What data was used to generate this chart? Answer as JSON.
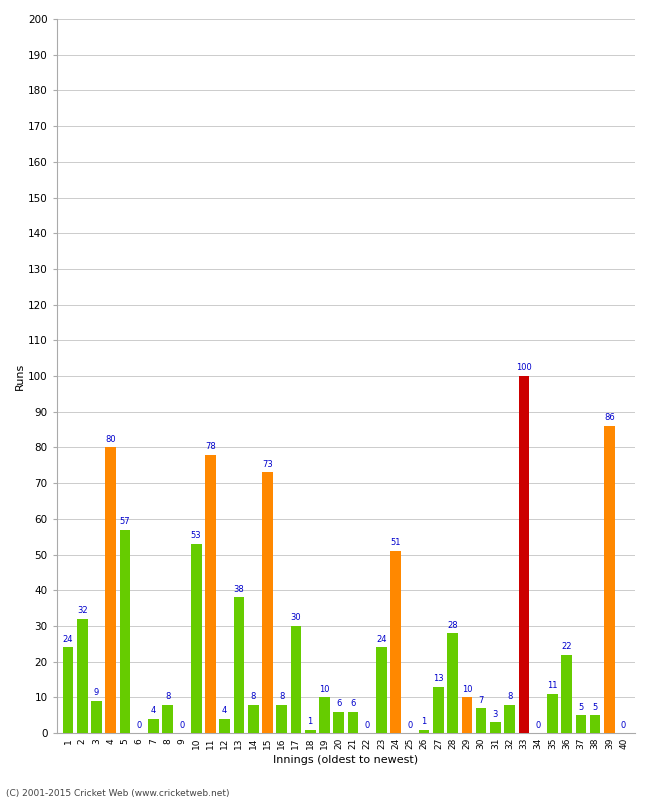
{
  "xlabel": "Innings (oldest to newest)",
  "ylabel": "Runs",
  "ylim": [
    0,
    200
  ],
  "yticks": [
    0,
    10,
    20,
    30,
    40,
    50,
    60,
    70,
    80,
    90,
    100,
    110,
    120,
    130,
    140,
    150,
    160,
    170,
    180,
    190,
    200
  ],
  "green_color": "#66cc00",
  "orange_color": "#ff8800",
  "red_color": "#cc0000",
  "label_color": "#0000cc",
  "bg_color": "#ffffff",
  "grid_color": "#cccccc",
  "footer": "(C) 2001-2015 Cricket Web (www.cricketweb.net)",
  "innings_data": [
    {
      "inn": 1,
      "val": 24,
      "color": "green"
    },
    {
      "inn": 2,
      "val": 32,
      "color": "green"
    },
    {
      "inn": 3,
      "val": 9,
      "color": "green"
    },
    {
      "inn": 4,
      "val": 80,
      "color": "orange"
    },
    {
      "inn": 5,
      "val": 57,
      "color": "green"
    },
    {
      "inn": 6,
      "val": 0,
      "color": "orange"
    },
    {
      "inn": 7,
      "val": 4,
      "color": "green"
    },
    {
      "inn": 8,
      "val": 8,
      "color": "green"
    },
    {
      "inn": 9,
      "val": 0,
      "color": "orange"
    },
    {
      "inn": 10,
      "val": 53,
      "color": "green"
    },
    {
      "inn": 11,
      "val": 78,
      "color": "orange"
    },
    {
      "inn": 12,
      "val": 4,
      "color": "green"
    },
    {
      "inn": 13,
      "val": 38,
      "color": "green"
    },
    {
      "inn": 14,
      "val": 8,
      "color": "green"
    },
    {
      "inn": 15,
      "val": 73,
      "color": "orange"
    },
    {
      "inn": 16,
      "val": 8,
      "color": "green"
    },
    {
      "inn": 17,
      "val": 30,
      "color": "green"
    },
    {
      "inn": 18,
      "val": 1,
      "color": "green"
    },
    {
      "inn": 19,
      "val": 10,
      "color": "green"
    },
    {
      "inn": 20,
      "val": 6,
      "color": "green"
    },
    {
      "inn": 21,
      "val": 6,
      "color": "green"
    },
    {
      "inn": 22,
      "val": 0,
      "color": "orange"
    },
    {
      "inn": 23,
      "val": 24,
      "color": "green"
    },
    {
      "inn": 24,
      "val": 51,
      "color": "orange"
    },
    {
      "inn": 25,
      "val": 0,
      "color": "green"
    },
    {
      "inn": 26,
      "val": 1,
      "color": "green"
    },
    {
      "inn": 27,
      "val": 13,
      "color": "green"
    },
    {
      "inn": 28,
      "val": 28,
      "color": "green"
    },
    {
      "inn": 29,
      "val": 10,
      "color": "orange"
    },
    {
      "inn": 30,
      "val": 7,
      "color": "green"
    },
    {
      "inn": 31,
      "val": 3,
      "color": "green"
    },
    {
      "inn": 32,
      "val": 8,
      "color": "green"
    },
    {
      "inn": 33,
      "val": 100,
      "color": "red"
    },
    {
      "inn": 34,
      "val": 0,
      "color": "orange"
    },
    {
      "inn": 35,
      "val": 11,
      "color": "green"
    },
    {
      "inn": 36,
      "val": 22,
      "color": "green"
    },
    {
      "inn": 37,
      "val": 5,
      "color": "green"
    },
    {
      "inn": 38,
      "val": 5,
      "color": "green"
    },
    {
      "inn": 39,
      "val": 86,
      "color": "orange"
    },
    {
      "inn": 40,
      "val": 0,
      "color": "green"
    }
  ]
}
